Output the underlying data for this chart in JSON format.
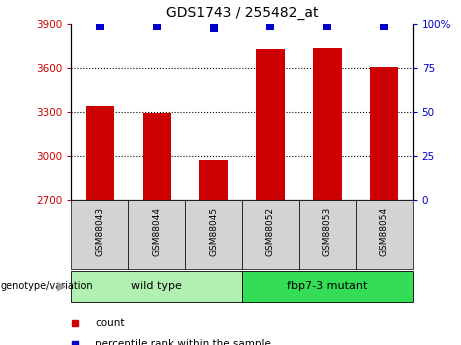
{
  "title": "GDS1743 / 255482_at",
  "samples": [
    "GSM88043",
    "GSM88044",
    "GSM88045",
    "GSM88052",
    "GSM88053",
    "GSM88054"
  ],
  "bar_values": [
    3340,
    3295,
    2975,
    3730,
    3735,
    3605
  ],
  "percentile_values": [
    99,
    99,
    98,
    99,
    99,
    99
  ],
  "ylim_left": [
    2700,
    3900
  ],
  "ylim_right": [
    0,
    100
  ],
  "yticks_left": [
    2700,
    3000,
    3300,
    3600,
    3900
  ],
  "yticks_right": [
    0,
    25,
    50,
    75,
    100
  ],
  "ytick_labels_right": [
    "0",
    "25",
    "50",
    "75",
    "100%"
  ],
  "bar_color": "#cc0000",
  "dot_color": "#0000cc",
  "groups": [
    {
      "label": "wild type",
      "start": 0,
      "end": 2,
      "color": "#b0f0b0"
    },
    {
      "label": "fbp7-3 mutant",
      "start": 3,
      "end": 5,
      "color": "#33dd55"
    }
  ],
  "group_label": "genotype/variation",
  "legend_items": [
    {
      "label": "count",
      "color": "#cc0000"
    },
    {
      "label": "percentile rank within the sample",
      "color": "#0000cc"
    }
  ],
  "bar_width": 0.5,
  "dot_size": 35,
  "left_tick_color": "#cc0000",
  "right_tick_color": "#0000cc",
  "tick_bg_color": "#d3d3d3",
  "bar_border_color": "#000000"
}
